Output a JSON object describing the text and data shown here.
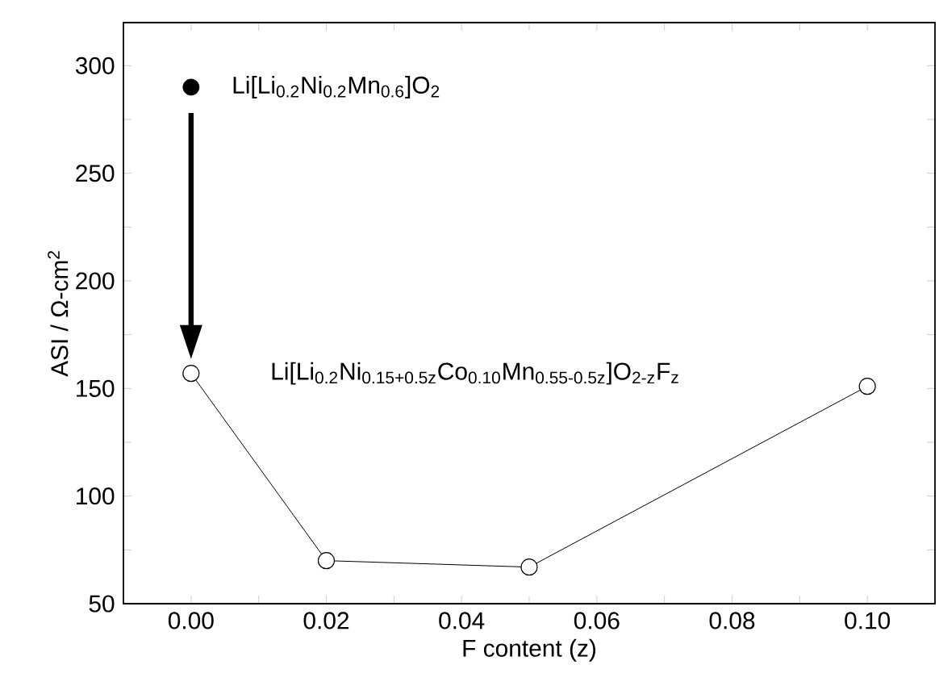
{
  "chart_data": {
    "type": "line",
    "xlabel": "F content (z)",
    "ylabel": "ASI / Ω-cm$^{2}$",
    "series": [
      {
        "name": "Li[Li$_{0.2}$Ni$_{0.15+0.5z}$Co$_{0.10}$Mn$_{0.55-0.5z}$]O$_{2-z}$F$_{z}$",
        "color": "#000000",
        "marker": "circle",
        "values": [
          157,
          70,
          67,
          151
        ],
        "x": [
          0,
          0.02,
          0.05,
          0.1
        ]
      },
      {
        "name": "Li[Li$_{0.2}$Ni$_{0.2}$Mn$_{0.6}$]O$_{2}$",
        "type": "scatter",
        "color": "#000000",
        "marker": "circle",
        "values": [
          290
        ],
        "x": [
          0
        ]
      }
    ],
    "xlim": [
      -0.01,
      0.11
    ],
    "ylim": [
      50,
      320
    ],
    "xticks": [
      {
        "value": 0,
        "label": "0.00"
      },
      {
        "value": 0.01,
        "label": null
      },
      {
        "value": 0.02,
        "label": "0.02"
      },
      {
        "value": 0.03,
        "label": null
      },
      {
        "value": 0.04,
        "label": "0.04"
      },
      {
        "value": 0.05,
        "label": null
      },
      {
        "value": 0.06,
        "label": "0.06"
      },
      {
        "value": 0.07,
        "label": null
      },
      {
        "value": 0.08,
        "label": "0.08"
      },
      {
        "value": 0.09,
        "label": null
      },
      {
        "value": 0.1,
        "label": "0.10"
      }
    ],
    "yticks": [
      50,
      {
        "value": 75,
        "label": null
      },
      100,
      {
        "value": 125,
        "label": null
      },
      150,
      {
        "value": 175,
        "label": null
      },
      200,
      {
        "value": 225,
        "label": null
      },
      250,
      {
        "value": 275,
        "label": null
      },
      300
    ],
    "grid": false
  }
}
